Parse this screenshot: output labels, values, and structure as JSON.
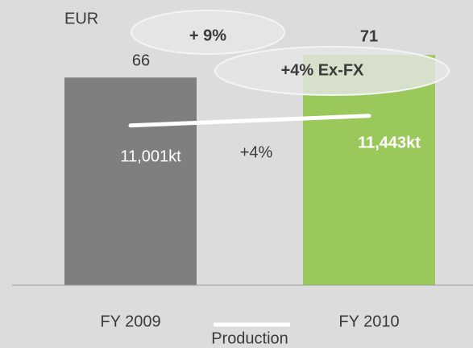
{
  "chart_data": {
    "type": "bar",
    "y_label": "EUR",
    "categories": [
      "FY 2009",
      "FY 2010"
    ],
    "values": [
      66,
      71
    ],
    "colors": [
      "#7f7f7f",
      "#9bc85b"
    ],
    "ylim": [
      20,
      83
    ],
    "y2lim": [
      3700,
      16700
    ],
    "line_series": {
      "name": "Production",
      "color": "#ffffff",
      "axis": "y2",
      "values": [
        11001,
        11443
      ],
      "value_labels": [
        "11,001kt",
        "11,443kt"
      ]
    },
    "annotations": [
      "+ 9%",
      "+4% Ex-FX",
      "+4%"
    ]
  }
}
